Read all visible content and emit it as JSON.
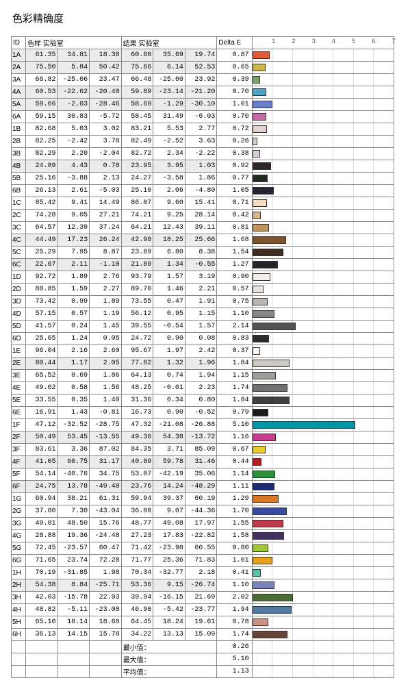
{
  "title": "色彩精确度",
  "headers": {
    "id": "ID",
    "sample": "色样 实验室",
    "result": "结果 实验室",
    "delta": "Delta E"
  },
  "chart": {
    "max": 7,
    "ticks": [
      1,
      2,
      3,
      4,
      5,
      6,
      7
    ],
    "tick_count": 7
  },
  "summary": {
    "min_label": "最小值：",
    "min_value": "0.26",
    "max_label": "最大值：",
    "max_value": "5.10",
    "avg_label": "平均值：",
    "avg_value": "1.13"
  },
  "rows": [
    {
      "id": "1A",
      "shaded": true,
      "s": [
        "61.35",
        "34.81",
        "18.38"
      ],
      "r": [
        "60.80",
        "35.69",
        "19.74"
      ],
      "d": "0.87",
      "c": "#e05a3a"
    },
    {
      "id": "2A",
      "shaded": true,
      "s": [
        "75.50",
        "5.84",
        "50.42"
      ],
      "r": [
        "75.66",
        "6.14",
        "52.53"
      ],
      "d": "0.65",
      "c": "#cbb84e"
    },
    {
      "id": "3A",
      "shaded": false,
      "s": [
        "66.82",
        "-25.06",
        "23.47"
      ],
      "r": [
        "66.48",
        "-25.60",
        "23.92"
      ],
      "d": "0.39",
      "c": "#7aa06f"
    },
    {
      "id": "4A",
      "shaded": true,
      "s": [
        "60.53",
        "-22.62",
        "-20.40"
      ],
      "r": [
        "59.89",
        "-23.14",
        "-21.20"
      ],
      "d": "0.70",
      "c": "#56a0c0"
    },
    {
      "id": "5A",
      "shaded": true,
      "s": [
        "59.66",
        "-2.03",
        "-28.46"
      ],
      "r": [
        "58.69",
        "-1.29",
        "-30.10"
      ],
      "d": "1.01",
      "c": "#6b7ecb"
    },
    {
      "id": "6A",
      "shaded": false,
      "s": [
        "59.15",
        "30.83",
        "-5.72"
      ],
      "r": [
        "58.45",
        "31.49",
        "-6.03"
      ],
      "d": "0.70",
      "c": "#c56aa2"
    },
    {
      "id": "1B",
      "shaded": false,
      "s": [
        "82.68",
        "5.03",
        "3.02"
      ],
      "r": [
        "83.21",
        "5.53",
        "2.77"
      ],
      "d": "0.72",
      "c": "#e2d3cf"
    },
    {
      "id": "2B",
      "shaded": false,
      "s": [
        "82.25",
        "-2.42",
        "3.78"
      ],
      "r": [
        "82.49",
        "-2.52",
        "3.63"
      ],
      "d": "0.26",
      "c": "#cdd3c6"
    },
    {
      "id": "3B",
      "shaded": false,
      "s": [
        "82.29",
        "2.20",
        "-2.04"
      ],
      "r": [
        "82.72",
        "2.34",
        "-2.22"
      ],
      "d": "0.38",
      "c": "#d4cfd9"
    },
    {
      "id": "4B",
      "shaded": true,
      "s": [
        "24.89",
        "4.43",
        "0.78"
      ],
      "r": [
        "23.95",
        "3.95",
        "1.03"
      ],
      "d": "0.92",
      "c": "#2e2626"
    },
    {
      "id": "5B",
      "shaded": false,
      "s": [
        "25.16",
        "-3.88",
        "2.13"
      ],
      "r": [
        "24.27",
        "-3.58",
        "1.86"
      ],
      "d": "0.77",
      "c": "#222a22"
    },
    {
      "id": "6B",
      "shaded": false,
      "s": [
        "26.13",
        "2.61",
        "-5.03"
      ],
      "r": [
        "25.10",
        "2.06",
        "-4.80"
      ],
      "d": "1.05",
      "c": "#262432"
    },
    {
      "id": "1C",
      "shaded": false,
      "s": [
        "85.42",
        "9.41",
        "14.49"
      ],
      "r": [
        "86.07",
        "9.60",
        "15.41"
      ],
      "d": "0.71",
      "c": "#f0ddc4"
    },
    {
      "id": "2C",
      "shaded": false,
      "s": [
        "74.28",
        "9.05",
        "27.21"
      ],
      "r": [
        "74.21",
        "9.25",
        "28.14"
      ],
      "d": "0.42",
      "c": "#d6b98c"
    },
    {
      "id": "3C",
      "shaded": false,
      "s": [
        "64.57",
        "12.39",
        "37.24"
      ],
      "r": [
        "64.21",
        "12.43",
        "39.11"
      ],
      "d": "0.81",
      "c": "#be9558"
    },
    {
      "id": "4C",
      "shaded": true,
      "s": [
        "44.49",
        "17.23",
        "26.24"
      ],
      "r": [
        "42.98",
        "18.25",
        "25.66"
      ],
      "d": "1.68",
      "c": "#7c5530"
    },
    {
      "id": "5C",
      "shaded": false,
      "s": [
        "25.29",
        "7.95",
        "8.87"
      ],
      "r": [
        "23.89",
        "6.80",
        "8.38"
      ],
      "d": "1.54",
      "c": "#3d2c22"
    },
    {
      "id": "6C",
      "shaded": true,
      "s": [
        "22.67",
        "2.11",
        "-1.10"
      ],
      "r": [
        "21.89",
        "1.34",
        "-0.55"
      ],
      "d": "1.27",
      "c": "#272427"
    },
    {
      "id": "1D",
      "shaded": false,
      "s": [
        "92.72",
        "1.89",
        "2.76"
      ],
      "r": [
        "93.79",
        "1.57",
        "3.19"
      ],
      "d": "0.90",
      "c": "#f4efe9"
    },
    {
      "id": "2D",
      "shaded": false,
      "s": [
        "88.85",
        "1.59",
        "2.27"
      ],
      "r": [
        "89.70",
        "1.46",
        "2.21"
      ],
      "d": "0.57",
      "c": "#e7e3de"
    },
    {
      "id": "3D",
      "shaded": false,
      "s": [
        "73.42",
        "0.99",
        "1.89"
      ],
      "r": [
        "73.55",
        "0.47",
        "1.91"
      ],
      "d": "0.75",
      "c": "#b9b6b2"
    },
    {
      "id": "4D",
      "shaded": false,
      "s": [
        "57.15",
        "0.57",
        "1.19"
      ],
      "r": [
        "56.12",
        "0.95",
        "1.15"
      ],
      "d": "1.10",
      "c": "#8a8886"
    },
    {
      "id": "5D",
      "shaded": false,
      "s": [
        "41.57",
        "0.24",
        "1.45"
      ],
      "r": [
        "39.55",
        "-0.54",
        "1.57"
      ],
      "d": "2.14",
      "c": "#555452"
    },
    {
      "id": "6D",
      "shaded": false,
      "s": [
        "25.65",
        "1.24",
        "0.05"
      ],
      "r": [
        "24.72",
        "0.90",
        "0.08"
      ],
      "d": "0.83",
      "c": "#2c2a2a"
    },
    {
      "id": "1E",
      "shaded": false,
      "s": [
        "96.04",
        "2.16",
        "2.60"
      ],
      "r": [
        "95.67",
        "1.97",
        "2.42"
      ],
      "d": "0.37",
      "c": "#fbf6f0"
    },
    {
      "id": "2E",
      "shaded": true,
      "s": [
        "80.44",
        "1.17",
        "2.05"
      ],
      "r": [
        "77.82",
        "1.32",
        "1.96"
      ],
      "d": "1.84",
      "c": "#ccc9c5"
    },
    {
      "id": "3E",
      "shaded": false,
      "s": [
        "65.52",
        "0.69",
        "1.86"
      ],
      "r": [
        "64.13",
        "0.74",
        "1.94"
      ],
      "d": "1.15",
      "c": "#a09e9a"
    },
    {
      "id": "4E",
      "shaded": false,
      "s": [
        "49.62",
        "0.58",
        "1.56"
      ],
      "r": [
        "48.25",
        "-0.01",
        "2.23"
      ],
      "d": "1.74",
      "c": "#737270"
    },
    {
      "id": "5E",
      "shaded": false,
      "s": [
        "33.55",
        "0.35",
        "1.40"
      ],
      "r": [
        "31.36",
        "0.34",
        "0.80"
      ],
      "d": "1.84",
      "c": "#403f3e"
    },
    {
      "id": "6E",
      "shaded": false,
      "s": [
        "16.91",
        "1.43",
        "-0.81"
      ],
      "r": [
        "16.73",
        "0.90",
        "-0.52"
      ],
      "d": "0.79",
      "c": "#1c1a1c"
    },
    {
      "id": "1F",
      "shaded": false,
      "s": [
        "47.12",
        "-32.52",
        "-28.75"
      ],
      "r": [
        "47.32",
        "-21.08",
        "-26.88"
      ],
      "d": "5.10",
      "c": "#0096a8"
    },
    {
      "id": "2F",
      "shaded": true,
      "s": [
        "50.49",
        "53.45",
        "-13.55"
      ],
      "r": [
        "49.36",
        "54.38",
        "-13.72"
      ],
      "d": "1.16",
      "c": "#c63d8d"
    },
    {
      "id": "3F",
      "shaded": false,
      "s": [
        "83.61",
        "3.36",
        "87.02"
      ],
      "r": [
        "84.35",
        "3.71",
        "85.09"
      ],
      "d": "0.67",
      "c": "#e6cc2f"
    },
    {
      "id": "4F",
      "shaded": true,
      "s": [
        "41.05",
        "60.75",
        "31.17"
      ],
      "r": [
        "40.89",
        "59.78",
        "31.46"
      ],
      "d": "0.44",
      "c": "#b61f22"
    },
    {
      "id": "5F",
      "shaded": false,
      "s": [
        "54.14",
        "-40.76",
        "34.75"
      ],
      "r": [
        "53.07",
        "-42.19",
        "35.06"
      ],
      "d": "1.14",
      "c": "#2e8f3a"
    },
    {
      "id": "6F",
      "shaded": true,
      "s": [
        "24.75",
        "13.78",
        "-49.48"
      ],
      "r": [
        "23.76",
        "14.24",
        "-48.29"
      ],
      "d": "1.11",
      "c": "#1f2a73"
    },
    {
      "id": "1G",
      "shaded": false,
      "s": [
        "60.94",
        "38.21",
        "61.31"
      ],
      "r": [
        "59.94",
        "39.37",
        "60.19"
      ],
      "d": "1.29",
      "c": "#d97a22"
    },
    {
      "id": "2G",
      "shaded": false,
      "s": [
        "37.80",
        "7.30",
        "-43.04"
      ],
      "r": [
        "36.00",
        "9.07",
        "-44.36"
      ],
      "d": "1.70",
      "c": "#3a4a9e"
    },
    {
      "id": "3G",
      "shaded": false,
      "s": [
        "49.81",
        "48.50",
        "15.76"
      ],
      "r": [
        "48.77",
        "49.08",
        "17.97"
      ],
      "d": "1.55",
      "c": "#bc3c4b"
    },
    {
      "id": "4G",
      "shaded": false,
      "s": [
        "28.88",
        "19.36",
        "-24.48"
      ],
      "r": [
        "27.23",
        "17.83",
        "-22.82"
      ],
      "d": "1.58",
      "c": "#42305f"
    },
    {
      "id": "5G",
      "shaded": false,
      "s": [
        "72.45",
        "-23.57",
        "60.47"
      ],
      "r": [
        "71.42",
        "-23.98",
        "60.55"
      ],
      "d": "0.80",
      "c": "#a3c73a"
    },
    {
      "id": "6G",
      "shaded": false,
      "s": [
        "71.65",
        "23.74",
        "72.28"
      ],
      "r": [
        "71.77",
        "25.36",
        "71.83"
      ],
      "d": "1.01",
      "c": "#e6a11f"
    },
    {
      "id": "1H",
      "shaded": false,
      "s": [
        "70.19",
        "-31.85",
        "1.98"
      ],
      "r": [
        "70.34",
        "-32.77",
        "2.18"
      ],
      "d": "0.41",
      "c": "#5fc2ab"
    },
    {
      "id": "2H",
      "shaded": true,
      "s": [
        "54.38",
        "8.84",
        "-25.71"
      ],
      "r": [
        "53.36",
        "9.15",
        "-26.74"
      ],
      "d": "1.10",
      "c": "#7a82b7"
    },
    {
      "id": "3H",
      "shaded": false,
      "s": [
        "42.03",
        "-15.78",
        "22.93"
      ],
      "r": [
        "39.94",
        "-16.15",
        "21.69"
      ],
      "d": "2.02",
      "c": "#4d6b36"
    },
    {
      "id": "4H",
      "shaded": false,
      "s": [
        "48.82",
        "-5.11",
        "-23.08"
      ],
      "r": [
        "46.90",
        "-5.42",
        "-23.77"
      ],
      "d": "1.94",
      "c": "#537a9f"
    },
    {
      "id": "5H",
      "shaded": false,
      "s": [
        "65.10",
        "18.14",
        "18.68"
      ],
      "r": [
        "64.45",
        "18.24",
        "19.61"
      ],
      "d": "0.78",
      "c": "#c99184"
    },
    {
      "id": "6H",
      "shaded": false,
      "s": [
        "36.13",
        "14.15",
        "15.78"
      ],
      "r": [
        "34.22",
        "13.13",
        "15.09"
      ],
      "d": "1.74",
      "c": "#65443a"
    }
  ]
}
